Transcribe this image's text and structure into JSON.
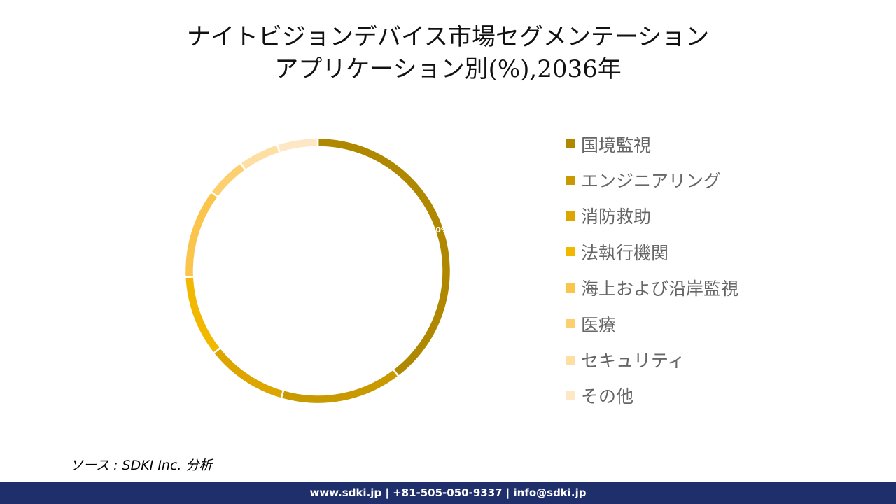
{
  "title_line1": "ナイトビジョンデバイス市場セグメンテーション",
  "title_line2": "アプリケーション別(%),2036年",
  "chart_data": {
    "type": "pie",
    "donut": true,
    "categories": [
      "国境監視",
      "エンジニアリング",
      "消防救助",
      "法執行機関",
      "海上および沿岸監視",
      "医療",
      "セキュリティ",
      "その他"
    ],
    "values": [
      40,
      15,
      10,
      10,
      11,
      5,
      5,
      5
    ],
    "data_labels": [
      "40%",
      "",
      "",
      "",
      "",
      "",
      "",
      ""
    ],
    "colors": [
      "#b08800",
      "#c99a00",
      "#dca500",
      "#f2b800",
      "#fbc54c",
      "#fccf6f",
      "#fddfa3",
      "#fde7c5"
    ],
    "legend_position": "right"
  },
  "source": "ソース : SDKI Inc. 分析",
  "footer": "www.sdki.jp | +81-505-050-9337 | info@sdki.jp"
}
